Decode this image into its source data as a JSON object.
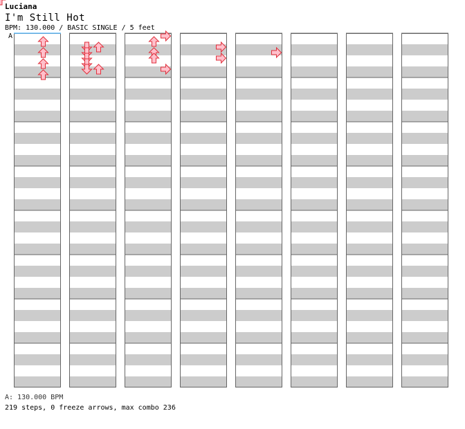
{
  "song": {
    "artist": "Luciana",
    "title": "I'm Still Hot",
    "meta": "BPM: 130.000 / BASIC SINGLE / 5 feet",
    "marker": "A"
  },
  "footer": {
    "bpm": "A: 130.000 BPM",
    "stats": "219 steps, 0 freeze arrows, max combo 236"
  },
  "colors": {
    "normal_fill": "#ffc0cb",
    "normal_stroke": "#e0303c",
    "blue_fill": "#8ec8ff",
    "blue_stroke": "#2a7ad8",
    "stripe": "#cccccc",
    "border": "#666666"
  },
  "chart_data": {
    "type": "table",
    "lanes": [
      "left",
      "down",
      "up",
      "right"
    ],
    "columns": 8,
    "measures_per_column": 8,
    "rows_per_measure": 16,
    "notes": [
      [
        2,
        0,
        2,
        "n"
      ],
      [
        2,
        0,
        14,
        "n"
      ],
      [
        2,
        1,
        4,
        "n"
      ],
      [
        2,
        1,
        12,
        "n"
      ],
      [
        5,
        0,
        4,
        "n"
      ],
      [
        5,
        0,
        14,
        "n"
      ],
      [
        5,
        1,
        12,
        "n"
      ],
      [
        7,
        0,
        4,
        "n"
      ],
      [
        7,
        0,
        10,
        "n"
      ],
      [
        7,
        1,
        12,
        "n"
      ],
      [
        7,
        1,
        0,
        "n"
      ],
      [
        7,
        1,
        2,
        "n"
      ],
      [
        7,
        1,
        4,
        "n"
      ],
      [
        7,
        1,
        8,
        "n"
      ],
      [
        7,
        1,
        10,
        "n"
      ],
      [
        1,
        1,
        4,
        "n"
      ],
      [
        1,
        1,
        6,
        "n"
      ],
      [
        1,
        1,
        8,
        "n"
      ],
      [
        1,
        1,
        10,
        "n"
      ],
      [
        1,
        1,
        12,
        "n"
      ],
      [
        3,
        2,
        0,
        "n"
      ],
      [
        3,
        2,
        12,
        "n"
      ],
      [
        3,
        3,
        4,
        "n"
      ],
      [
        3,
        3,
        8,
        "n"
      ],
      [
        3,
        4,
        6,
        "n"
      ],
      [
        6,
        2,
        4,
        "n"
      ],
      [
        6,
        3,
        12,
        "n"
      ],
      [
        6,
        4,
        12,
        "n"
      ],
      [
        6,
        6,
        8,
        "n"
      ],
      [
        2,
        0,
        6,
        "n"
      ],
      [
        2,
        0,
        10,
        "n"
      ],
      [
        2,
        2,
        2,
        "n"
      ],
      [
        2,
        2,
        6,
        "n"
      ],
      [
        2,
        2,
        8,
        "n"
      ]
    ]
  }
}
